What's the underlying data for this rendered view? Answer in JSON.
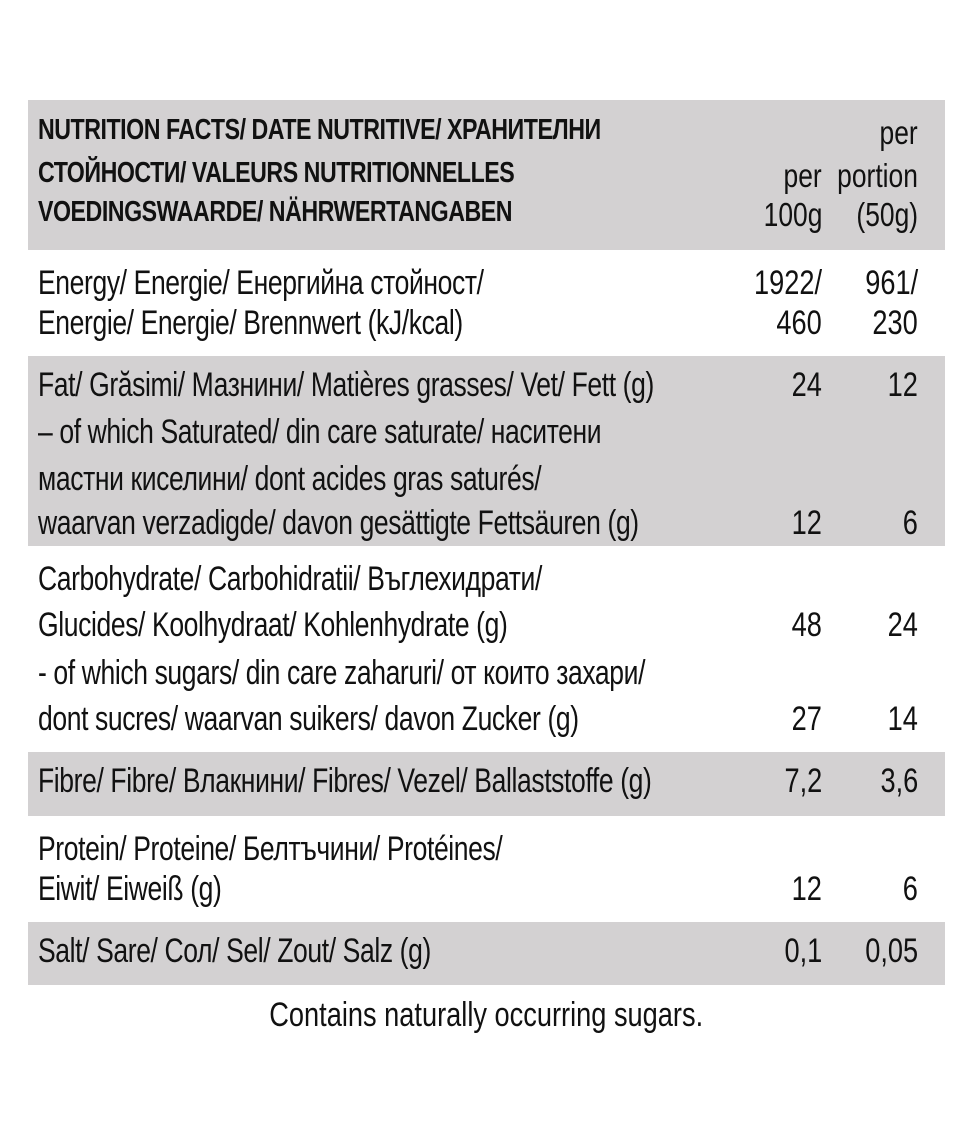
{
  "header": {
    "lines": [
      {
        "label": "NUTRITION FACTS/ DATE NUTRITIVE/ ХРАНИТЕЛНИ",
        "v100": "",
        "portion": "per"
      },
      {
        "label": "СТОЙНОСТИ/ VALEURS NUTRITIONNELLES",
        "v100": "per",
        "portion": "portion"
      },
      {
        "label": "VOEDINGSWAARDE/ NÄHRWERTANGABEN",
        "v100": "100g",
        "portion": "(50g)"
      }
    ]
  },
  "rows": [
    {
      "lines": [
        {
          "label": "Energy/ Energie/ Енергийна стойност/",
          "v100": "1922/",
          "portion": "961/"
        },
        {
          "label": "Energie/ Energie/ Brennwert (kJ/kcal)",
          "v100": "460",
          "portion": "230"
        }
      ]
    },
    {
      "lines": [
        {
          "label": "Fat/ Grăsimi/ Мазнини/ Matières grasses/ Vet/ Fett (g)",
          "v100": "24",
          "portion": "12"
        },
        {
          "label": "– of which Saturated/ din care saturate/ наситени",
          "v100": "",
          "portion": ""
        },
        {
          "label": "мастни киселини/ dont acides gras saturés/",
          "v100": "",
          "portion": ""
        },
        {
          "label": "waarvan verzadigde/ davon gesättigte Fettsäuren (g)",
          "v100": "12",
          "portion": "6"
        }
      ]
    },
    {
      "lines": [
        {
          "label": "Carbohydrate/ Carbohidratii/ Въглехидрати/",
          "v100": "",
          "portion": ""
        },
        {
          "label": "Glucides/ Koolhydraat/ Kohlenhydrate (g)",
          "v100": "48",
          "portion": "24"
        },
        {
          "label": "- of which sugars/ din care zaharuri/ от които захари/",
          "v100": "",
          "portion": ""
        },
        {
          "label": "dont sucres/ waarvan suikers/ davon Zucker (g)",
          "v100": "27",
          "portion": "14"
        }
      ]
    },
    {
      "lines": [
        {
          "label": "Fibre/ Fibre/ Влакнини/ Fibres/ Vezel/ Ballaststoffe (g)",
          "v100": "7,2",
          "portion": "3,6"
        }
      ]
    },
    {
      "lines": [
        {
          "label": "Protein/ Proteine/ Белтъчини/ Protéines/",
          "v100": "",
          "portion": ""
        },
        {
          "label": "Eiwit/ Eiweiß (g)",
          "v100": "12",
          "portion": "6"
        }
      ]
    },
    {
      "lines": [
        {
          "label": "Salt/ Sare/ Сол/ Sel/ Zout/ Salz (g)",
          "v100": "0,1",
          "portion": "0,05"
        }
      ]
    }
  ],
  "footer": "Contains naturally occurring sugars.",
  "colors": {
    "shade": "#d3d1d2",
    "text": "#111111"
  }
}
